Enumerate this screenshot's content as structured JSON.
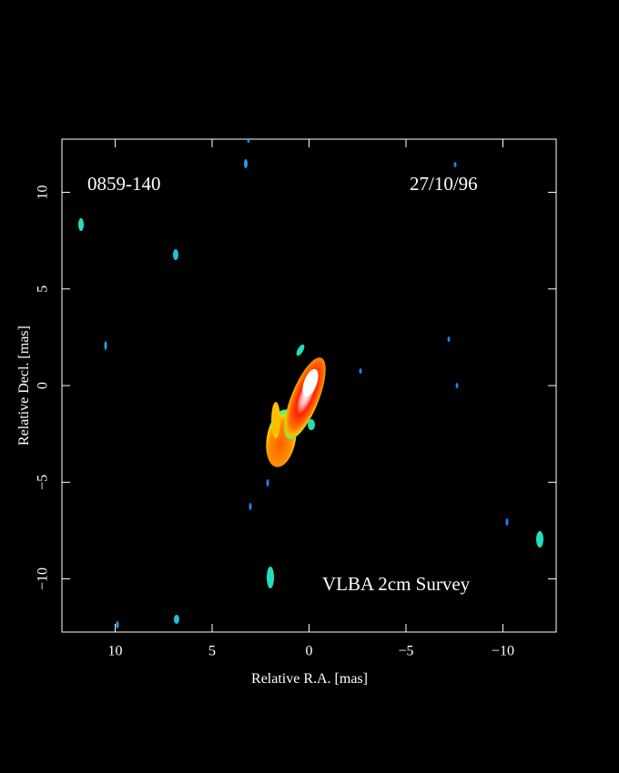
{
  "chart_data": {
    "type": "image",
    "xlabel": "Relative R.A. [mas]",
    "ylabel": "Relative Decl. [mas]",
    "xlim": [
      12.75,
      -12.75
    ],
    "ylim": [
      -12.75,
      12.75
    ],
    "xticks": [
      10,
      5,
      0,
      {
        "value": -5,
        "label": "−5"
      },
      {
        "value": -10,
        "label": "−10"
      }
    ],
    "yticks": [
      {
        "value": -10,
        "label": "−10"
      },
      {
        "value": -5,
        "label": "−5"
      },
      0,
      5,
      10
    ],
    "annotations": [
      "0859-140",
      "27/10/96",
      "VLBA 2cm Survey"
    ]
  }
}
